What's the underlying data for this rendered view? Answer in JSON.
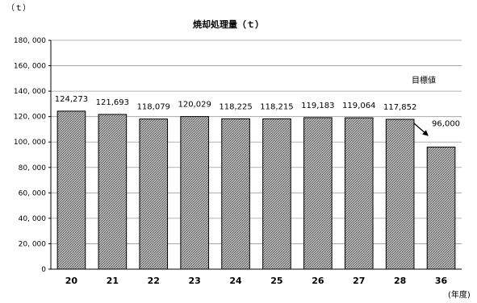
{
  "chart_data": {
    "type": "bar",
    "title": "焼却処理量（ｔ）",
    "ylabel": "（ｔ）",
    "xlabel": "(年度)",
    "categories": [
      "20",
      "21",
      "22",
      "23",
      "24",
      "25",
      "26",
      "27",
      "28",
      "36"
    ],
    "values": [
      124273,
      121693,
      118079,
      120029,
      118225,
      118215,
      119183,
      119064,
      117852,
      96000
    ],
    "value_labels": [
      "124,273",
      "121,693",
      "118,079",
      "120,029",
      "118,225",
      "118,215",
      "119,183",
      "119,064",
      "117,852",
      "96,000"
    ],
    "ylim": [
      0,
      180000
    ],
    "yticks": [
      0,
      20000,
      40000,
      60000,
      80000,
      100000,
      120000,
      140000,
      160000,
      180000
    ],
    "ytick_labels": [
      "0",
      "20, 000",
      "40, 000",
      "60, 000",
      "80, 000",
      "100, 000",
      "120, 000",
      "140, 000",
      "160, 000",
      "180, 000"
    ],
    "grid": true,
    "annotation": "目標値",
    "bar_color": "#8c8c8c"
  }
}
